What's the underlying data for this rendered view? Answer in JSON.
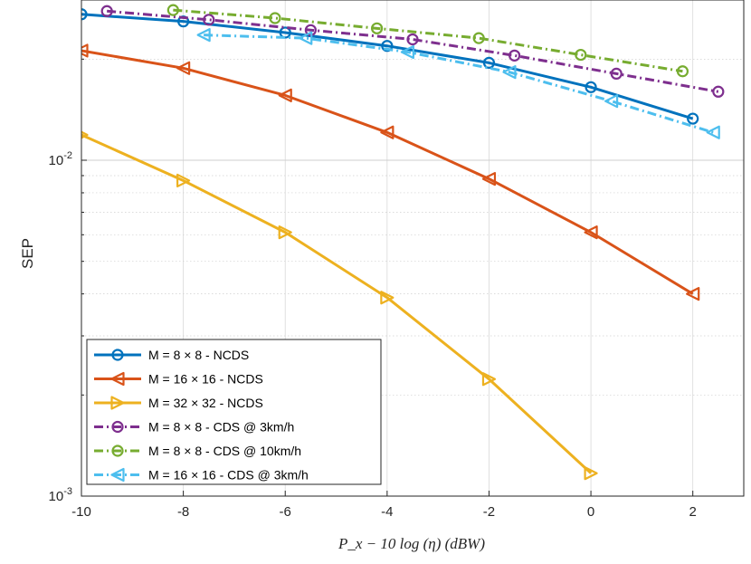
{
  "chart_data": {
    "type": "line",
    "yscale": "log",
    "xlabel": "P_x − 10 log (η)  (dBW)",
    "ylabel": "SEP",
    "xlim": [
      -10,
      3
    ],
    "ylim": [
      0.001,
      0.03
    ],
    "xticks": [
      "-10",
      "-8",
      "-6",
      "-4",
      "-2",
      "0",
      "2"
    ],
    "ytick_base": "10",
    "ytick_exponents": [
      "-2",
      "-3"
    ],
    "grid": true,
    "legend_position": "lower-left",
    "series": [
      {
        "name": "M = 8 × 8 - NCDS",
        "color": "#0072BD",
        "dash": "solid",
        "marker": "circle",
        "x": [
          -10,
          -8,
          -6,
          -4,
          -2,
          0,
          2
        ],
        "y": [
          0.0272,
          0.0259,
          0.024,
          0.0219,
          0.0195,
          0.0165,
          0.0133
        ]
      },
      {
        "name": "M = 16 × 16 - NCDS",
        "color": "#D95319",
        "dash": "solid",
        "marker": "triangle-left",
        "x": [
          -10,
          -8,
          -6,
          -4,
          -2,
          0,
          2
        ],
        "y": [
          0.0212,
          0.0188,
          0.0156,
          0.0121,
          0.0088,
          0.0061,
          0.004
        ]
      },
      {
        "name": "M = 32 × 32 - NCDS",
        "color": "#EDB120",
        "dash": "solid",
        "marker": "triangle-right",
        "x": [
          -10,
          -8,
          -6,
          -4,
          -2,
          0
        ],
        "y": [
          0.0119,
          0.0087,
          0.0061,
          0.0039,
          0.00223,
          0.00117
        ]
      },
      {
        "name": "M = 8 × 8 - CDS @ 3km/h",
        "color": "#7E2F8E",
        "dash": "dashdot",
        "marker": "circle",
        "x": [
          -9.5,
          -7.5,
          -5.5,
          -3.5,
          -1.5,
          0.5,
          2.5
        ],
        "y": [
          0.0278,
          0.0262,
          0.0244,
          0.0229,
          0.0205,
          0.0181,
          0.016
        ]
      },
      {
        "name": "M = 8 × 8 - CDS @ 10km/h",
        "color": "#77AC30",
        "dash": "dashdot",
        "marker": "circle",
        "x": [
          -8.2,
          -6.2,
          -4.2,
          -2.2,
          -0.2,
          1.8
        ],
        "y": [
          0.028,
          0.0265,
          0.0247,
          0.0231,
          0.0206,
          0.0184
        ]
      },
      {
        "name": "M = 16 × 16 - CDS @ 3km/h",
        "color": "#4DBEEE",
        "dash": "dashdot",
        "marker": "triangle-left",
        "x": [
          -7.6,
          -5.6,
          -3.6,
          -1.6,
          0.4,
          2.4
        ],
        "y": [
          0.0236,
          0.0231,
          0.021,
          0.0183,
          0.015,
          0.0121
        ]
      }
    ]
  }
}
